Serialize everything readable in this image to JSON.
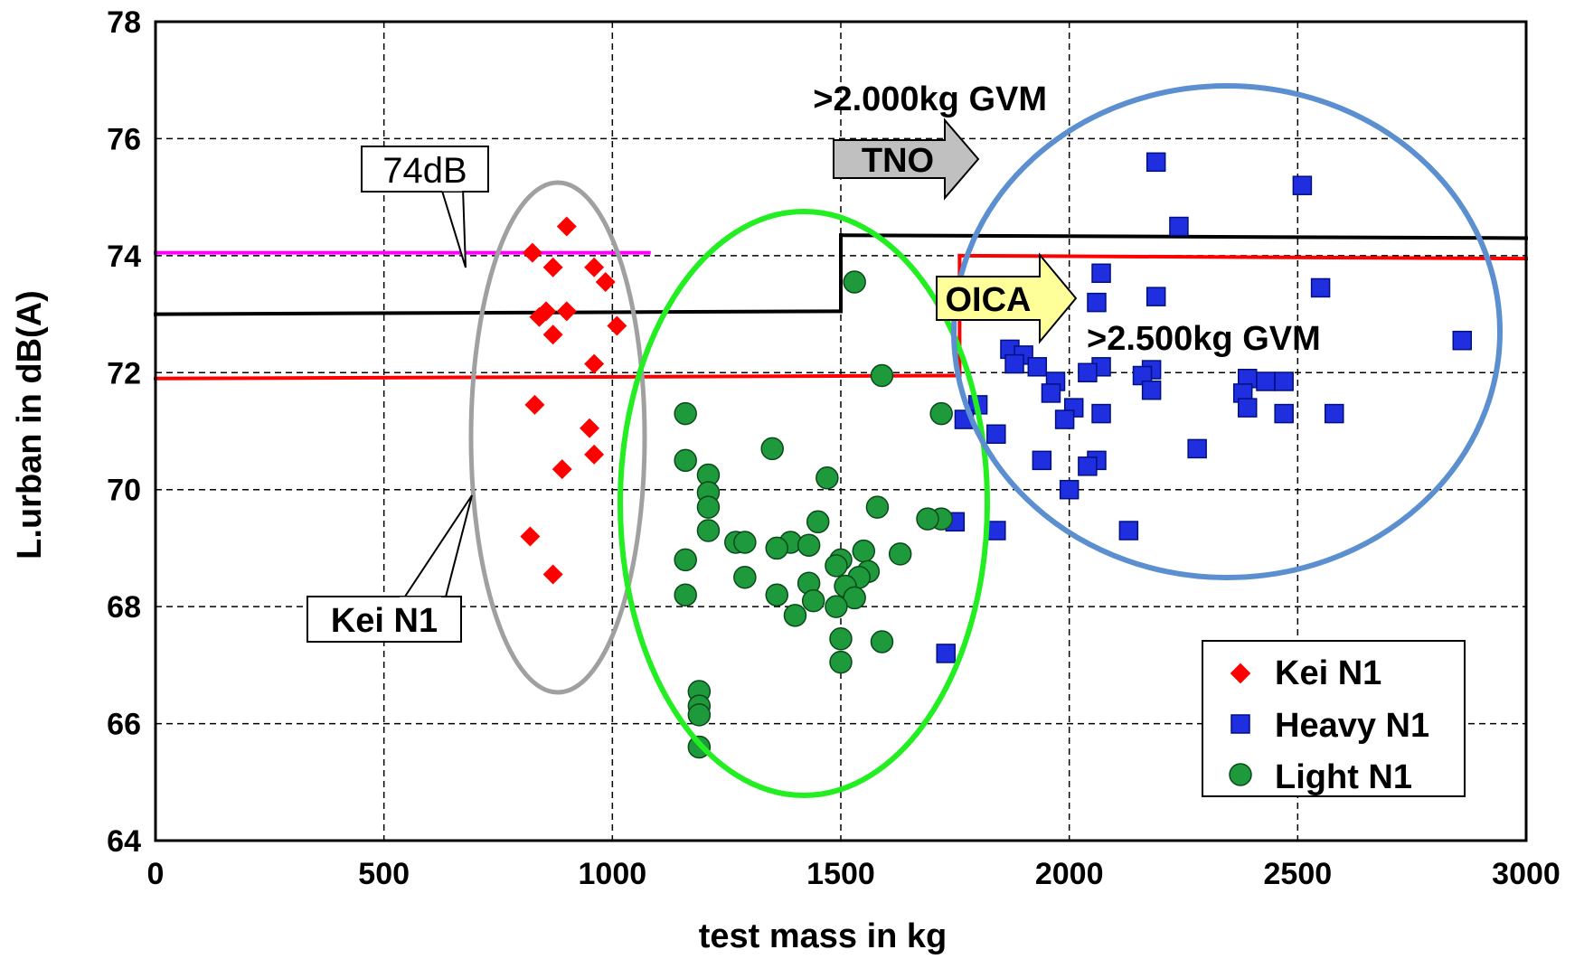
{
  "chart_data": {
    "type": "scatter",
    "xlabel": "test mass in kg",
    "ylabel": "L.urban in dB(A)",
    "xlim": [
      0,
      3000
    ],
    "ylim": [
      64,
      78
    ],
    "xticks": [
      0,
      500,
      1000,
      1500,
      2000,
      2500,
      3000
    ],
    "yticks": [
      64,
      66,
      68,
      70,
      72,
      74,
      76,
      78
    ],
    "xtick_labels": [
      "0",
      "500",
      "1000",
      "1500",
      "2000",
      "2500",
      "3000"
    ],
    "ytick_labels": [
      "64",
      "66",
      "68",
      "70",
      "72",
      "74",
      "76",
      "78"
    ],
    "grid": true,
    "legend_position": "bottom-right",
    "series": [
      {
        "name": "Kei N1",
        "marker": "diamond",
        "color": "#ff0000",
        "points": [
          [
            825,
            74.05
          ],
          [
            900,
            74.5
          ],
          [
            870,
            73.8
          ],
          [
            960,
            73.8
          ],
          [
            985,
            73.55
          ],
          [
            855,
            73.05
          ],
          [
            900,
            73.05
          ],
          [
            840,
            72.95
          ],
          [
            1010,
            72.8
          ],
          [
            870,
            72.65
          ],
          [
            960,
            72.15
          ],
          [
            830,
            71.45
          ],
          [
            950,
            71.05
          ],
          [
            960,
            70.6
          ],
          [
            890,
            70.35
          ],
          [
            820,
            69.2
          ],
          [
            870,
            68.55
          ]
        ]
      },
      {
        "name": "Heavy N1",
        "marker": "square",
        "color": "#1f2fe0",
        "points": [
          [
            2190,
            75.6
          ],
          [
            2510,
            75.2
          ],
          [
            2240,
            74.5
          ],
          [
            2070,
            73.7
          ],
          [
            2550,
            73.45
          ],
          [
            2190,
            73.3
          ],
          [
            2060,
            73.2
          ],
          [
            2860,
            72.55
          ],
          [
            1870,
            72.4
          ],
          [
            1900,
            72.3
          ],
          [
            1880,
            72.15
          ],
          [
            1930,
            72.1
          ],
          [
            2070,
            72.1
          ],
          [
            2040,
            72.0
          ],
          [
            2180,
            72.05
          ],
          [
            2160,
            71.95
          ],
          [
            2390,
            71.9
          ],
          [
            1970,
            71.85
          ],
          [
            2430,
            71.85
          ],
          [
            2470,
            71.85
          ],
          [
            1960,
            71.65
          ],
          [
            2180,
            71.7
          ],
          [
            2380,
            71.65
          ],
          [
            1800,
            71.45
          ],
          [
            2010,
            71.4
          ],
          [
            2390,
            71.4
          ],
          [
            2070,
            71.3
          ],
          [
            2470,
            71.3
          ],
          [
            2580,
            71.3
          ],
          [
            1990,
            71.2
          ],
          [
            1770,
            71.2
          ],
          [
            1840,
            70.95
          ],
          [
            2280,
            70.7
          ],
          [
            1940,
            70.5
          ],
          [
            2060,
            70.5
          ],
          [
            2040,
            70.4
          ],
          [
            2000,
            70.0
          ],
          [
            1750,
            69.45
          ],
          [
            1840,
            69.3
          ],
          [
            2130,
            69.3
          ],
          [
            1730,
            67.2
          ]
        ]
      },
      {
        "name": "Light N1",
        "marker": "circle",
        "color": "#1e9a3c",
        "points": [
          [
            1530,
            73.55
          ],
          [
            1590,
            71.95
          ],
          [
            1720,
            71.3
          ],
          [
            1160,
            71.3
          ],
          [
            1350,
            70.7
          ],
          [
            1160,
            70.5
          ],
          [
            1210,
            70.25
          ],
          [
            1210,
            69.95
          ],
          [
            1470,
            70.2
          ],
          [
            1210,
            69.7
          ],
          [
            1580,
            69.7
          ],
          [
            1720,
            69.5
          ],
          [
            1690,
            69.5
          ],
          [
            1450,
            69.45
          ],
          [
            1210,
            69.3
          ],
          [
            1270,
            69.1
          ],
          [
            1290,
            69.1
          ],
          [
            1390,
            69.1
          ],
          [
            1360,
            69.0
          ],
          [
            1430,
            69.05
          ],
          [
            1550,
            68.95
          ],
          [
            1630,
            68.9
          ],
          [
            1160,
            68.8
          ],
          [
            1500,
            68.8
          ],
          [
            1490,
            68.7
          ],
          [
            1560,
            68.6
          ],
          [
            1540,
            68.5
          ],
          [
            1290,
            68.5
          ],
          [
            1430,
            68.4
          ],
          [
            1510,
            68.35
          ],
          [
            1360,
            68.2
          ],
          [
            1160,
            68.2
          ],
          [
            1440,
            68.1
          ],
          [
            1530,
            68.15
          ],
          [
            1490,
            68.0
          ],
          [
            1400,
            67.85
          ],
          [
            1500,
            67.45
          ],
          [
            1590,
            67.4
          ],
          [
            1500,
            67.05
          ],
          [
            1190,
            66.55
          ],
          [
            1190,
            66.3
          ],
          [
            1190,
            66.15
          ],
          [
            1190,
            65.6
          ]
        ]
      }
    ],
    "limit_lines": [
      {
        "color": "#ff00ff",
        "segments": [
          [
            [
              0,
              74.05
            ],
            [
              1080,
              74.05
            ]
          ]
        ]
      },
      {
        "color": "#000000",
        "segments": [
          [
            [
              0,
              73.0
            ],
            [
              1500,
              73.05
            ]
          ],
          [
            [
              1500,
              73.05
            ],
            [
              1500,
              74.35
            ]
          ],
          [
            [
              1500,
              74.35
            ],
            [
              3000,
              74.3
            ]
          ]
        ]
      },
      {
        "color": "#ff0000",
        "segments": [
          [
            [
              0,
              71.9
            ],
            [
              1760,
              71.95
            ]
          ],
          [
            [
              1760,
              71.95
            ],
            [
              1760,
              74.0
            ]
          ],
          [
            [
              1760,
              74.0
            ],
            [
              3000,
              73.95
            ]
          ]
        ]
      }
    ],
    "annotations": {
      "tno_label": ">2.000kg GVM",
      "tno_arrow": "TNO",
      "oica_arrow": "OICA",
      "oica_label": ">2.500kg GVM",
      "callout_74db": "74dB",
      "callout_kei": "Kei N1"
    },
    "ellipse_colors": {
      "kei": "#a0a0a0",
      "light": "#22ee22",
      "heavy": "#5b8fd0"
    }
  }
}
